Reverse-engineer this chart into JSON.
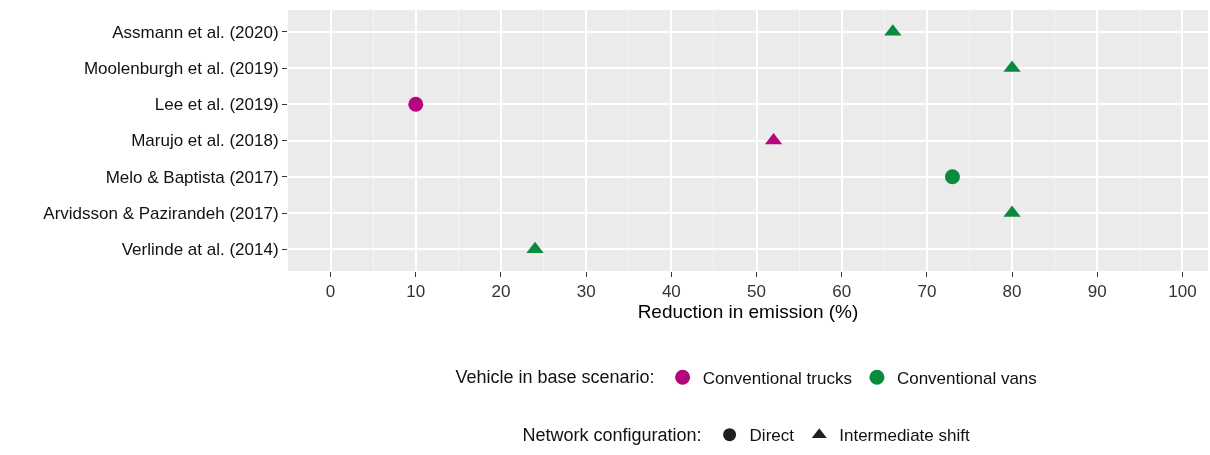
{
  "chart_data": {
    "type": "scatter",
    "categories": [
      "Assmann et al. (2020)",
      "Moolenburgh et al. (2019)",
      "Lee et al. (2019)",
      "Marujo et al. (2018)",
      "Melo & Baptista (2017)",
      "Arvidsson & Pazirandeh (2017)",
      "Verlinde at al. (2014)"
    ],
    "orientation": "horizontal",
    "xlabel": "Reduction in emission (%)",
    "xlim": [
      -5,
      103
    ],
    "xticks": [
      0,
      10,
      20,
      30,
      40,
      50,
      60,
      70,
      80,
      90,
      100
    ],
    "grid": true,
    "legend": "bottom",
    "legend_title": [
      "Vehicle in base scenario:",
      "Network configuration:"
    ],
    "series": [
      {
        "name": "Conventional trucks",
        "color": "#b5067f",
        "marker": "circle",
        "values": [
          null,
          null,
          10,
          null,
          null,
          null,
          null
        ]
      },
      {
        "name": "Conventional vans",
        "color": "#0a8a3c",
        "marker": "circle",
        "values": [
          null,
          null,
          null,
          null,
          73,
          null,
          null
        ]
      },
      {
        "color": "#b5067f",
        "marker": "triangle",
        "values": [
          null,
          null,
          null,
          52,
          null,
          null,
          null
        ]
      },
      {
        "color": "#0a8a3c",
        "marker": "triangle",
        "values": [
          66,
          80,
          null,
          null,
          null,
          80,
          24
        ]
      },
      {
        "name": "Direct",
        "color": "#231f20",
        "marker": "circle",
        "values": [
          null,
          null,
          null,
          null,
          null,
          null,
          null
        ]
      },
      {
        "name": "Intermediate shift",
        "color": "#231f20",
        "marker": "triangle",
        "values": [
          null,
          null,
          null,
          null,
          null,
          null,
          null
        ]
      }
    ]
  }
}
